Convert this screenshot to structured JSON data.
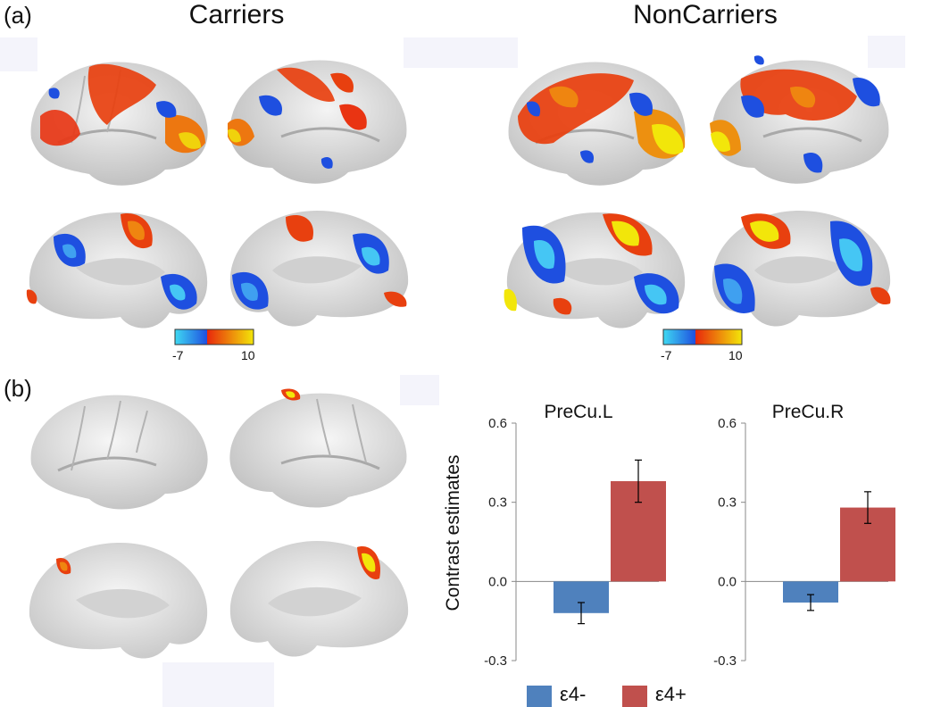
{
  "panels": {
    "a": {
      "label": "(a)",
      "groups": [
        {
          "title": "Carriers",
          "colorbar": {
            "min_label": "-7",
            "max_label": "10"
          }
        },
        {
          "title": "NonCarriers",
          "colorbar": {
            "min_label": "-7",
            "max_label": "10"
          }
        }
      ]
    },
    "b": {
      "label": "(b)"
    }
  },
  "colors": {
    "cortex": "#dcdcdc",
    "negative": "#1e4fe0",
    "negative_light": "#3fd9f2",
    "positive": "#e8270c",
    "positive_light": "#f2e60a",
    "e4_minus": "#4f81bd",
    "e4_plus": "#c0504d"
  },
  "chart_data": [
    {
      "type": "bar",
      "title": "PreCu.L",
      "ylabel": "Contrast estimates",
      "ylim": [
        -0.3,
        0.6
      ],
      "yticks": [
        "0.6",
        "0.3",
        "0.0",
        "-0.3"
      ],
      "categories": [
        "ε4-",
        "ε4+"
      ],
      "values": [
        -0.12,
        0.38
      ],
      "errors": [
        0.04,
        0.08
      ]
    },
    {
      "type": "bar",
      "title": "PreCu.R",
      "ylabel": "",
      "ylim": [
        -0.3,
        0.6
      ],
      "yticks": [
        "0.6",
        "0.3",
        "0.0",
        "-0.3"
      ],
      "categories": [
        "ε4-",
        "ε4+"
      ],
      "values": [
        -0.08,
        0.28
      ],
      "errors": [
        0.03,
        0.06
      ]
    }
  ],
  "legend": [
    {
      "label": "ε4-",
      "color": "#4f81bd"
    },
    {
      "label": "ε4+",
      "color": "#c0504d"
    }
  ]
}
